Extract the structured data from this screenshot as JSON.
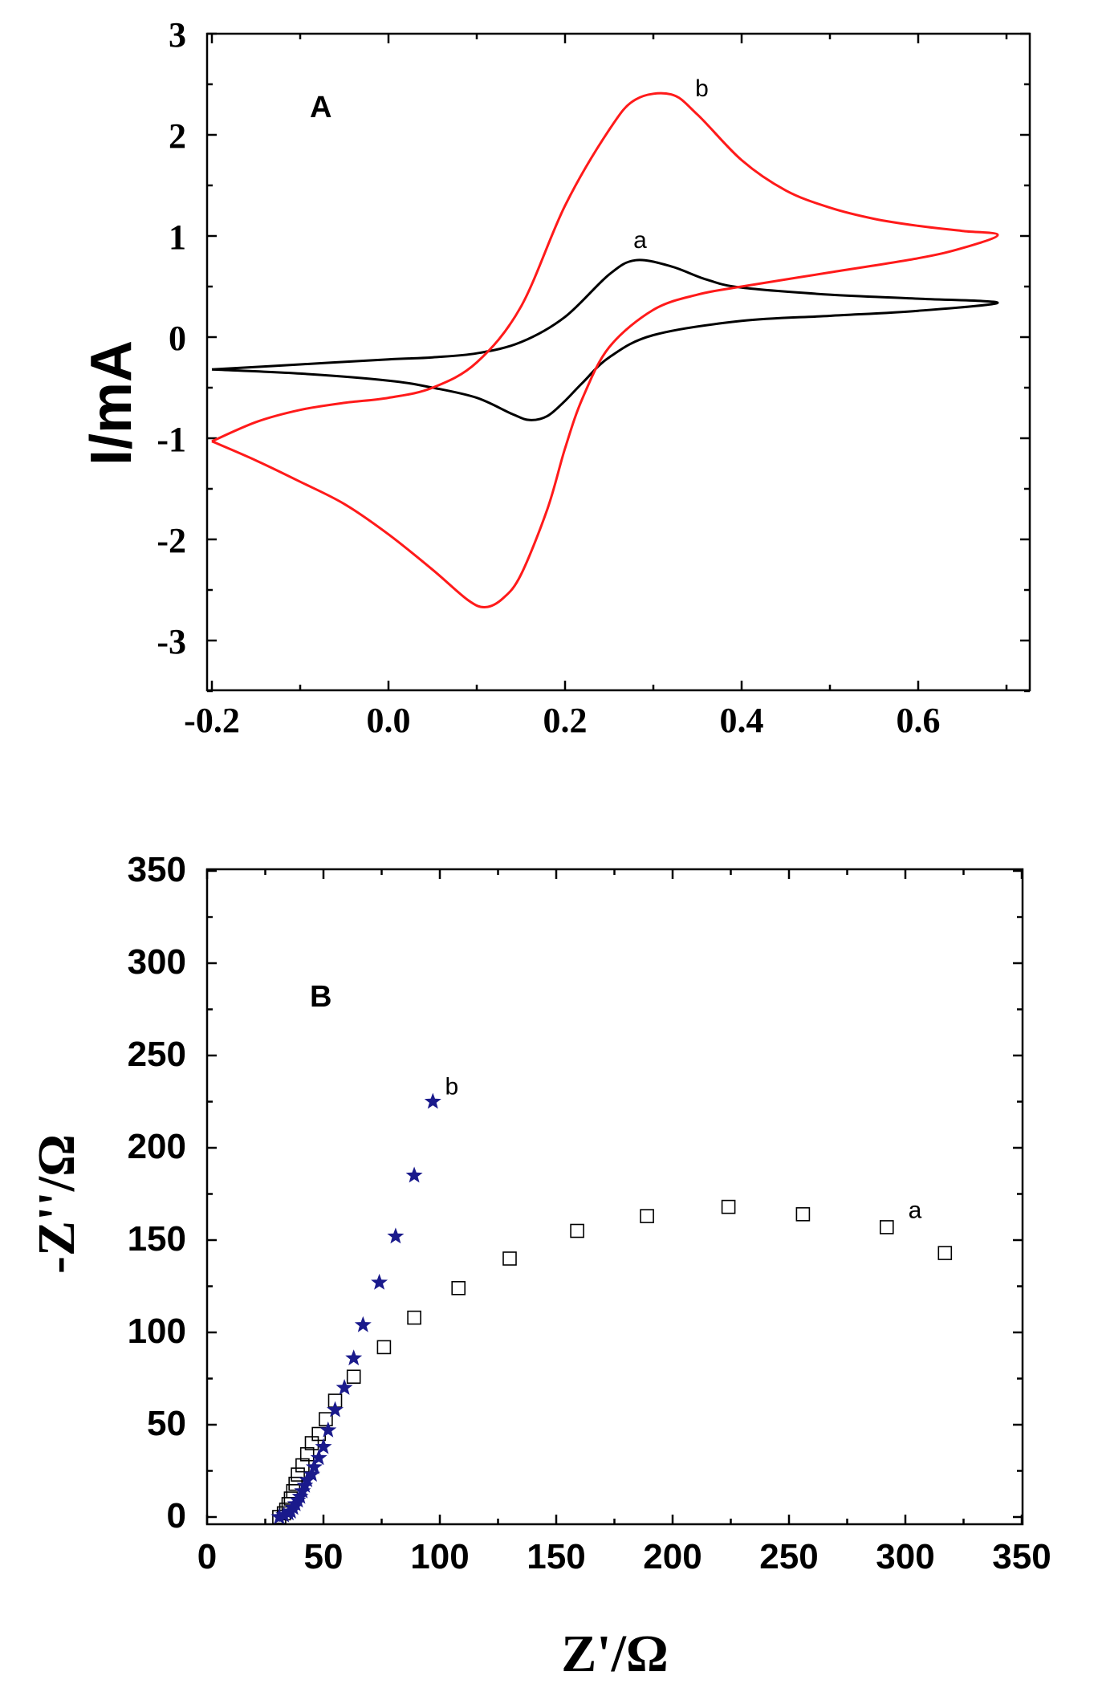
{
  "chart_data": [
    {
      "type": "line",
      "panel_label": "A",
      "title": "",
      "xlabel": "",
      "ylabel": "I/mA",
      "xlim": [
        -0.2,
        0.7
      ],
      "ylim": [
        -3.5,
        3.0
      ],
      "x_ticks": [
        "-0.2",
        "0.0",
        "0.2",
        "0.4",
        "0.6"
      ],
      "y_ticks": [
        "3",
        "2",
        "1",
        "0",
        "-1",
        "-2",
        "-3"
      ],
      "grid": false,
      "series": [
        {
          "name": "a",
          "color": "#000000",
          "forward": {
            "x": [
              -0.2,
              -0.1,
              0.0,
              0.05,
              0.1,
              0.15,
              0.2,
              0.25,
              0.28,
              0.32,
              0.36,
              0.4,
              0.5,
              0.6,
              0.69
            ],
            "y": [
              -0.32,
              -0.27,
              -0.22,
              -0.2,
              -0.16,
              -0.05,
              0.2,
              0.62,
              0.76,
              0.7,
              0.57,
              0.49,
              0.42,
              0.38,
              0.34
            ]
          },
          "reverse": {
            "x": [
              0.69,
              0.6,
              0.5,
              0.4,
              0.3,
              0.25,
              0.22,
              0.2,
              0.18,
              0.16,
              0.14,
              0.1,
              0.05,
              0.0,
              -0.1,
              -0.2
            ],
            "y": [
              0.34,
              0.26,
              0.21,
              0.16,
              0.02,
              -0.2,
              -0.45,
              -0.63,
              -0.78,
              -0.82,
              -0.76,
              -0.6,
              -0.5,
              -0.43,
              -0.36,
              -0.32
            ]
          }
        },
        {
          "name": "b",
          "color": "#ff1a1a",
          "forward": {
            "x": [
              -0.2,
              -0.15,
              -0.1,
              -0.05,
              0.0,
              0.05,
              0.1,
              0.15,
              0.2,
              0.25,
              0.28,
              0.32,
              0.35,
              0.4,
              0.45,
              0.5,
              0.55,
              0.6,
              0.65,
              0.69
            ],
            "y": [
              -1.03,
              -0.84,
              -0.72,
              -0.65,
              -0.6,
              -0.5,
              -0.25,
              0.3,
              1.3,
              2.05,
              2.35,
              2.4,
              2.2,
              1.75,
              1.45,
              1.28,
              1.17,
              1.1,
              1.05,
              1.01
            ]
          },
          "reverse": {
            "x": [
              0.69,
              0.65,
              0.6,
              0.5,
              0.4,
              0.35,
              0.3,
              0.25,
              0.22,
              0.2,
              0.18,
              0.15,
              0.13,
              0.11,
              0.09,
              0.05,
              0.0,
              -0.05,
              -0.1,
              -0.15,
              -0.2
            ],
            "y": [
              1.01,
              0.88,
              0.78,
              0.64,
              0.5,
              0.42,
              0.27,
              -0.1,
              -0.6,
              -1.1,
              -1.7,
              -2.35,
              -2.58,
              -2.67,
              -2.6,
              -2.3,
              -1.95,
              -1.65,
              -1.43,
              -1.22,
              -1.03
            ]
          }
        }
      ],
      "annotations": [
        {
          "text": "a",
          "x": 0.285,
          "y": 0.88
        },
        {
          "text": "b",
          "x": 0.355,
          "y": 2.38
        }
      ]
    },
    {
      "type": "scatter",
      "panel_label": "B",
      "title": "",
      "xlabel": "Z'/Ω",
      "ylabel": "-Z''/Ω",
      "xlim": [
        0,
        350
      ],
      "ylim": [
        -10,
        350
      ],
      "x_ticks": [
        "0",
        "50",
        "100",
        "150",
        "200",
        "250",
        "300",
        "350"
      ],
      "y_ticks": [
        "350",
        "300",
        "250",
        "200",
        "150",
        "100",
        "50",
        "0"
      ],
      "grid": false,
      "series": [
        {
          "name": "a",
          "marker": "open-square",
          "color": "#000000",
          "x": [
            31,
            33,
            34,
            35,
            36,
            37,
            38,
            39,
            41,
            43,
            45,
            48,
            51,
            55,
            63,
            76,
            89,
            108,
            130,
            159,
            189,
            224,
            256,
            292,
            317
          ],
          "y": [
            0,
            2,
            4,
            7,
            10,
            14,
            18,
            23,
            28,
            34,
            40,
            45,
            53,
            63,
            76,
            92,
            108,
            124,
            140,
            155,
            163,
            168,
            164,
            157,
            143
          ]
        },
        {
          "name": "b",
          "marker": "star",
          "color": "#1a1a8c",
          "x": [
            31,
            33,
            35,
            36,
            37,
            38,
            39,
            40,
            41,
            42,
            43,
            45,
            46,
            48,
            50,
            52,
            55,
            59,
            63,
            67,
            74,
            81,
            89,
            97
          ],
          "y": [
            0,
            1,
            2,
            3,
            5,
            7,
            9,
            11,
            14,
            17,
            20,
            23,
            27,
            32,
            38,
            47,
            58,
            70,
            86,
            104,
            127,
            152,
            185,
            225
          ]
        }
      ],
      "annotations": [
        {
          "text": "a",
          "x": 300,
          "y": 162
        },
        {
          "text": "b",
          "x": 101,
          "y": 229
        }
      ]
    }
  ]
}
